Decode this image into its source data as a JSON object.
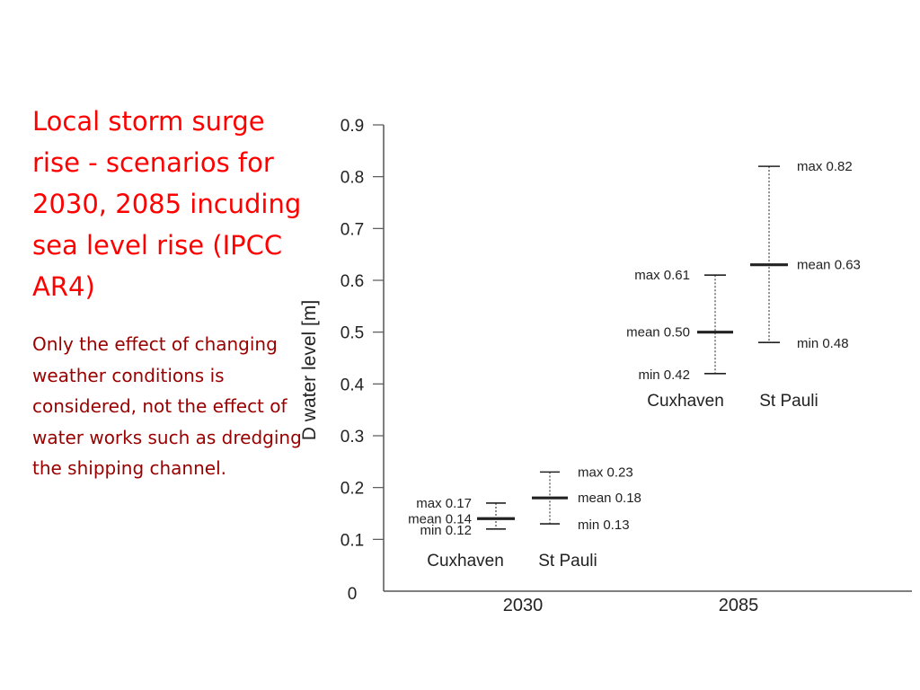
{
  "slide": {
    "title": "Local storm surge rise - scenarios for 2030, 2085 incuding sea level rise (IPCC AR4)",
    "subtitle": "Only the effect of changing weather conditions is considered, not the effect of water works such as dredging the shipping channel.",
    "title_color": "#ff0000",
    "subtitle_color": "#990000"
  },
  "chart_data": {
    "type": "range",
    "title": "",
    "xlabel": "",
    "ylabel": "D water level  [m]",
    "ylim": [
      0,
      0.9
    ],
    "yticks": [
      "0",
      "0.1",
      "0.2",
      "0.3",
      "0.4",
      "0.5",
      "0.6",
      "0.7",
      "0.8",
      "0.9"
    ],
    "categories": [
      "2030",
      "2085"
    ],
    "grid": false,
    "legend": "none",
    "groups": [
      {
        "category": "2030",
        "stations": [
          {
            "name": "Cuxhaven",
            "min": 0.12,
            "mean": 0.14,
            "max": 0.17,
            "min_label": "min 0.12",
            "mean_label": "mean 0.14",
            "max_label": "max 0.17"
          },
          {
            "name": "St Pauli",
            "min": 0.13,
            "mean": 0.18,
            "max": 0.23,
            "min_label": "min 0.13",
            "mean_label": "mean 0.18",
            "max_label": "max 0.23"
          }
        ]
      },
      {
        "category": "2085",
        "stations": [
          {
            "name": "Cuxhaven",
            "min": 0.42,
            "mean": 0.5,
            "max": 0.61,
            "min_label": "min 0.42",
            "mean_label": "mean 0.50",
            "max_label": "max 0.61"
          },
          {
            "name": "St Pauli",
            "min": 0.48,
            "mean": 0.63,
            "max": 0.82,
            "min_label": "min 0.48",
            "mean_label": "mean 0.63",
            "max_label": "max 0.82"
          }
        ]
      }
    ]
  }
}
